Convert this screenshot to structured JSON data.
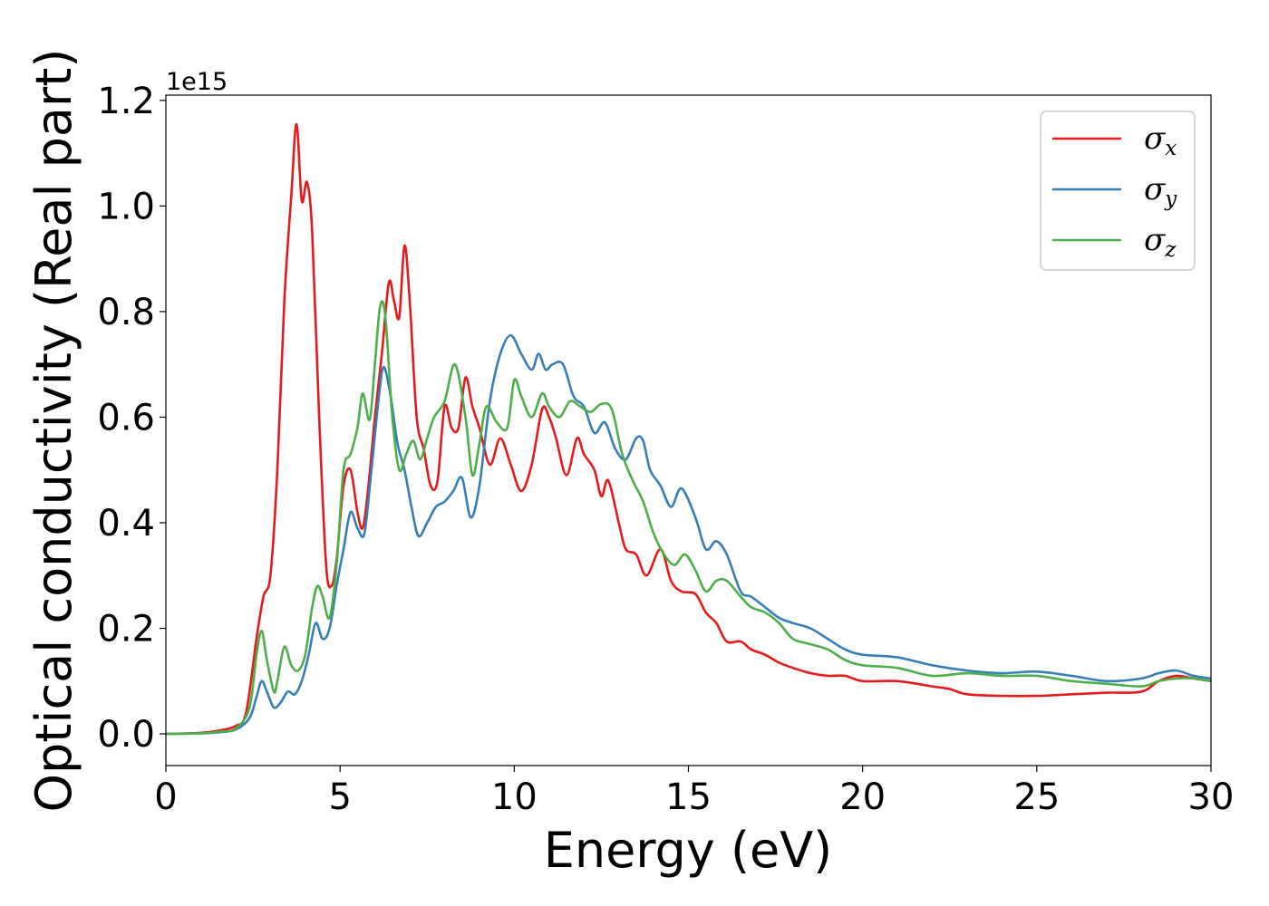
{
  "chart_data": {
    "type": "line",
    "title": "",
    "xlabel": "Energy (eV)",
    "ylabel": "Optical conductivity (Real part)",
    "y_offset_label": "1e15",
    "xlim": [
      0,
      30
    ],
    "ylim": [
      -0.06,
      1.21
    ],
    "x_ticks": [
      0,
      5,
      10,
      15,
      20,
      25,
      30
    ],
    "y_ticks": [
      0.0,
      0.2,
      0.4,
      0.6,
      0.8,
      1.0,
      1.2
    ],
    "x_tick_labels": [
      "0",
      "5",
      "10",
      "15",
      "20",
      "25",
      "30"
    ],
    "y_tick_labels": [
      "0.0",
      "0.2",
      "0.4",
      "0.6",
      "0.8",
      "1.0",
      "1.2"
    ],
    "grid": false,
    "legend_position": "top-right",
    "series": [
      {
        "name": "σx",
        "symbol": "σ",
        "subscript": "x",
        "color": "#e41a1c",
        "points": [
          [
            0,
            0
          ],
          [
            1.0,
            0.002
          ],
          [
            1.5,
            0.006
          ],
          [
            2.0,
            0.015
          ],
          [
            2.3,
            0.04
          ],
          [
            2.6,
            0.18
          ],
          [
            2.8,
            0.26
          ],
          [
            3.0,
            0.3
          ],
          [
            3.2,
            0.5
          ],
          [
            3.4,
            0.82
          ],
          [
            3.6,
            1.02
          ],
          [
            3.75,
            1.155
          ],
          [
            3.9,
            1.01
          ],
          [
            4.05,
            1.045
          ],
          [
            4.2,
            0.95
          ],
          [
            4.4,
            0.6
          ],
          [
            4.6,
            0.32
          ],
          [
            4.75,
            0.28
          ],
          [
            4.9,
            0.33
          ],
          [
            5.1,
            0.47
          ],
          [
            5.3,
            0.5
          ],
          [
            5.5,
            0.42
          ],
          [
            5.65,
            0.39
          ],
          [
            5.8,
            0.46
          ],
          [
            6.0,
            0.6
          ],
          [
            6.2,
            0.72
          ],
          [
            6.4,
            0.855
          ],
          [
            6.55,
            0.82
          ],
          [
            6.7,
            0.79
          ],
          [
            6.85,
            0.925
          ],
          [
            7.0,
            0.82
          ],
          [
            7.2,
            0.6
          ],
          [
            7.4,
            0.54
          ],
          [
            7.6,
            0.47
          ],
          [
            7.8,
            0.48
          ],
          [
            8.0,
            0.62
          ],
          [
            8.2,
            0.58
          ],
          [
            8.4,
            0.58
          ],
          [
            8.6,
            0.675
          ],
          [
            8.8,
            0.62
          ],
          [
            9.0,
            0.58
          ],
          [
            9.3,
            0.51
          ],
          [
            9.6,
            0.56
          ],
          [
            9.9,
            0.51
          ],
          [
            10.2,
            0.46
          ],
          [
            10.5,
            0.51
          ],
          [
            10.8,
            0.615
          ],
          [
            11.0,
            0.6
          ],
          [
            11.2,
            0.56
          ],
          [
            11.5,
            0.49
          ],
          [
            11.8,
            0.56
          ],
          [
            12.0,
            0.53
          ],
          [
            12.3,
            0.5
          ],
          [
            12.5,
            0.45
          ],
          [
            12.7,
            0.48
          ],
          [
            13.0,
            0.4
          ],
          [
            13.2,
            0.35
          ],
          [
            13.5,
            0.34
          ],
          [
            13.8,
            0.3
          ],
          [
            14.2,
            0.35
          ],
          [
            14.5,
            0.29
          ],
          [
            14.8,
            0.27
          ],
          [
            15.2,
            0.265
          ],
          [
            15.5,
            0.23
          ],
          [
            15.8,
            0.21
          ],
          [
            16.1,
            0.175
          ],
          [
            16.5,
            0.175
          ],
          [
            16.8,
            0.16
          ],
          [
            17.2,
            0.15
          ],
          [
            17.6,
            0.135
          ],
          [
            18.0,
            0.125
          ],
          [
            18.5,
            0.115
          ],
          [
            19.0,
            0.11
          ],
          [
            19.5,
            0.11
          ],
          [
            20.0,
            0.1
          ],
          [
            21.0,
            0.1
          ],
          [
            22.0,
            0.09
          ],
          [
            22.5,
            0.085
          ],
          [
            23.0,
            0.075
          ],
          [
            24.0,
            0.072
          ],
          [
            25.0,
            0.072
          ],
          [
            26.0,
            0.075
          ],
          [
            27.0,
            0.078
          ],
          [
            28.0,
            0.08
          ],
          [
            28.5,
            0.1
          ],
          [
            29.0,
            0.11
          ],
          [
            29.5,
            0.105
          ],
          [
            30.0,
            0.1
          ]
        ]
      },
      {
        "name": "σy",
        "symbol": "σ",
        "subscript": "y",
        "color": "#377eb8",
        "points": [
          [
            0,
            0
          ],
          [
            1.0,
            0.001
          ],
          [
            1.5,
            0.003
          ],
          [
            2.0,
            0.008
          ],
          [
            2.4,
            0.03
          ],
          [
            2.6,
            0.07
          ],
          [
            2.75,
            0.1
          ],
          [
            2.9,
            0.08
          ],
          [
            3.1,
            0.05
          ],
          [
            3.3,
            0.06
          ],
          [
            3.5,
            0.08
          ],
          [
            3.7,
            0.075
          ],
          [
            3.9,
            0.1
          ],
          [
            4.1,
            0.15
          ],
          [
            4.3,
            0.21
          ],
          [
            4.5,
            0.18
          ],
          [
            4.7,
            0.2
          ],
          [
            4.9,
            0.28
          ],
          [
            5.1,
            0.35
          ],
          [
            5.3,
            0.42
          ],
          [
            5.5,
            0.39
          ],
          [
            5.7,
            0.38
          ],
          [
            5.9,
            0.5
          ],
          [
            6.1,
            0.63
          ],
          [
            6.25,
            0.695
          ],
          [
            6.45,
            0.64
          ],
          [
            6.65,
            0.55
          ],
          [
            6.85,
            0.5
          ],
          [
            7.05,
            0.43
          ],
          [
            7.25,
            0.375
          ],
          [
            7.5,
            0.4
          ],
          [
            7.75,
            0.43
          ],
          [
            8.0,
            0.44
          ],
          [
            8.25,
            0.46
          ],
          [
            8.5,
            0.485
          ],
          [
            8.75,
            0.41
          ],
          [
            9.0,
            0.47
          ],
          [
            9.3,
            0.63
          ],
          [
            9.6,
            0.72
          ],
          [
            9.9,
            0.755
          ],
          [
            10.2,
            0.72
          ],
          [
            10.5,
            0.69
          ],
          [
            10.7,
            0.72
          ],
          [
            10.9,
            0.69
          ],
          [
            11.1,
            0.7
          ],
          [
            11.4,
            0.7
          ],
          [
            11.7,
            0.64
          ],
          [
            12.0,
            0.62
          ],
          [
            12.3,
            0.57
          ],
          [
            12.6,
            0.59
          ],
          [
            12.9,
            0.54
          ],
          [
            13.2,
            0.52
          ],
          [
            13.5,
            0.56
          ],
          [
            13.7,
            0.555
          ],
          [
            13.9,
            0.5
          ],
          [
            14.2,
            0.47
          ],
          [
            14.5,
            0.43
          ],
          [
            14.8,
            0.465
          ],
          [
            15.2,
            0.41
          ],
          [
            15.5,
            0.35
          ],
          [
            15.8,
            0.365
          ],
          [
            16.1,
            0.34
          ],
          [
            16.5,
            0.27
          ],
          [
            16.8,
            0.26
          ],
          [
            17.2,
            0.24
          ],
          [
            17.6,
            0.22
          ],
          [
            18.0,
            0.21
          ],
          [
            18.5,
            0.2
          ],
          [
            19.0,
            0.18
          ],
          [
            19.5,
            0.16
          ],
          [
            20.0,
            0.15
          ],
          [
            21.0,
            0.145
          ],
          [
            22.0,
            0.13
          ],
          [
            23.0,
            0.12
          ],
          [
            24.0,
            0.115
          ],
          [
            25.0,
            0.118
          ],
          [
            26.0,
            0.11
          ],
          [
            27.0,
            0.1
          ],
          [
            28.0,
            0.105
          ],
          [
            28.5,
            0.115
          ],
          [
            29.0,
            0.12
          ],
          [
            29.5,
            0.11
          ],
          [
            30.0,
            0.105
          ]
        ]
      },
      {
        "name": "σz",
        "symbol": "σ",
        "subscript": "z",
        "color": "#4daf4a",
        "points": [
          [
            0,
            0
          ],
          [
            1.0,
            0.001
          ],
          [
            1.5,
            0.004
          ],
          [
            2.0,
            0.01
          ],
          [
            2.4,
            0.05
          ],
          [
            2.6,
            0.15
          ],
          [
            2.75,
            0.195
          ],
          [
            2.9,
            0.14
          ],
          [
            3.1,
            0.08
          ],
          [
            3.2,
            0.1
          ],
          [
            3.4,
            0.165
          ],
          [
            3.6,
            0.13
          ],
          [
            3.8,
            0.12
          ],
          [
            4.0,
            0.15
          ],
          [
            4.2,
            0.24
          ],
          [
            4.35,
            0.28
          ],
          [
            4.5,
            0.26
          ],
          [
            4.7,
            0.22
          ],
          [
            4.9,
            0.32
          ],
          [
            5.1,
            0.5
          ],
          [
            5.3,
            0.53
          ],
          [
            5.5,
            0.58
          ],
          [
            5.65,
            0.645
          ],
          [
            5.85,
            0.595
          ],
          [
            6.0,
            0.7
          ],
          [
            6.15,
            0.81
          ],
          [
            6.3,
            0.79
          ],
          [
            6.5,
            0.6
          ],
          [
            6.7,
            0.5
          ],
          [
            6.9,
            0.53
          ],
          [
            7.1,
            0.555
          ],
          [
            7.3,
            0.52
          ],
          [
            7.5,
            0.56
          ],
          [
            7.7,
            0.6
          ],
          [
            8.0,
            0.63
          ],
          [
            8.3,
            0.7
          ],
          [
            8.6,
            0.6
          ],
          [
            8.8,
            0.49
          ],
          [
            9.0,
            0.55
          ],
          [
            9.2,
            0.62
          ],
          [
            9.5,
            0.59
          ],
          [
            9.8,
            0.58
          ],
          [
            10.0,
            0.67
          ],
          [
            10.2,
            0.64
          ],
          [
            10.5,
            0.6
          ],
          [
            10.8,
            0.645
          ],
          [
            11.0,
            0.62
          ],
          [
            11.3,
            0.6
          ],
          [
            11.6,
            0.63
          ],
          [
            11.9,
            0.62
          ],
          [
            12.2,
            0.61
          ],
          [
            12.5,
            0.625
          ],
          [
            12.8,
            0.615
          ],
          [
            13.1,
            0.53
          ],
          [
            13.4,
            0.48
          ],
          [
            13.7,
            0.44
          ],
          [
            14.0,
            0.38
          ],
          [
            14.3,
            0.34
          ],
          [
            14.6,
            0.32
          ],
          [
            14.9,
            0.34
          ],
          [
            15.2,
            0.31
          ],
          [
            15.5,
            0.27
          ],
          [
            15.8,
            0.29
          ],
          [
            16.1,
            0.29
          ],
          [
            16.5,
            0.26
          ],
          [
            16.8,
            0.24
          ],
          [
            17.2,
            0.23
          ],
          [
            17.6,
            0.21
          ],
          [
            18.0,
            0.18
          ],
          [
            18.5,
            0.17
          ],
          [
            19.0,
            0.16
          ],
          [
            19.5,
            0.14
          ],
          [
            20.0,
            0.13
          ],
          [
            21.0,
            0.125
          ],
          [
            22.0,
            0.11
          ],
          [
            23.0,
            0.115
          ],
          [
            24.0,
            0.11
          ],
          [
            25.0,
            0.11
          ],
          [
            26.0,
            0.1
          ],
          [
            27.0,
            0.095
          ],
          [
            28.0,
            0.09
          ],
          [
            28.5,
            0.1
          ],
          [
            29.0,
            0.105
          ],
          [
            29.5,
            0.105
          ],
          [
            30.0,
            0.1
          ]
        ]
      }
    ]
  }
}
